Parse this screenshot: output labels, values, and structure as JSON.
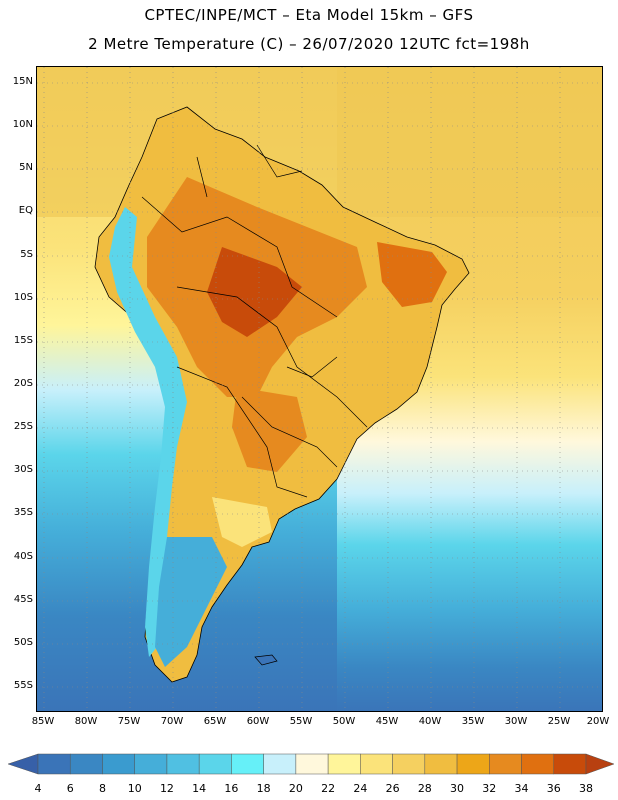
{
  "title_line1": "CPTEC/INPE/MCT –  Eta Model 15km – GFS",
  "title_line2": "2 Metre Temperature (C) – 26/07/2020 12UTC fct=198h",
  "lat_labels": [
    "15N",
    "10N",
    "5N",
    "EQ",
    "5S",
    "10S",
    "15S",
    "20S",
    "25S",
    "30S",
    "35S",
    "40S",
    "45S",
    "50S",
    "55S"
  ],
  "lat_values": [
    15,
    10,
    5,
    0,
    -5,
    -10,
    -15,
    -20,
    -25,
    -30,
    -35,
    -40,
    -45,
    -50,
    -55
  ],
  "lon_labels": [
    "85W",
    "80W",
    "75W",
    "70W",
    "65W",
    "60W",
    "55W",
    "50W",
    "45W",
    "40W",
    "35W",
    "30W",
    "25W",
    "20W"
  ],
  "lon_values": [
    -85,
    -80,
    -75,
    -70,
    -65,
    -60,
    -55,
    -50,
    -45,
    -40,
    -35,
    -30,
    -25,
    -20
  ],
  "map_extent": {
    "lon_min": -85.5,
    "lon_max": -19.5,
    "lat_min": -57.5,
    "lat_max": 17.5
  },
  "colorbar": {
    "labels": [
      "4",
      "6",
      "8",
      "10",
      "12",
      "14",
      "16",
      "18",
      "20",
      "22",
      "24",
      "26",
      "28",
      "30",
      "32",
      "34",
      "36",
      "38"
    ],
    "colors": [
      "#3a74b8",
      "#3a87c3",
      "#3a9bcf",
      "#45aed9",
      "#50c0e2",
      "#5bd5ea",
      "#66f0f8",
      "#c8f0fb",
      "#fff8dc",
      "#fff59a",
      "#fbe37a",
      "#f5d060",
      "#f0bd40",
      "#eda618",
      "#e68a1f",
      "#e07010",
      "#c84b0a"
    ],
    "arrow_left_color": "#3760a8",
    "arrow_right_color": "#b84010"
  }
}
